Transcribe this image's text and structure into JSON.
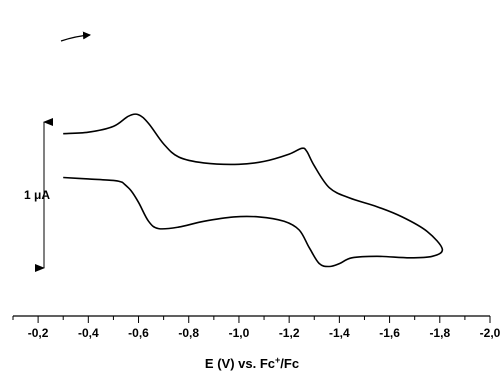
{
  "chart_data": {
    "type": "line",
    "xlabel_parts": {
      "pre": "E (V) vs. Fc",
      "sup": "+",
      "post": "/Fc"
    },
    "ylabel": "",
    "xlim": [
      -0.1,
      -2.0
    ],
    "x_ticks": [
      {
        "value": -0.2,
        "label": "-0,2"
      },
      {
        "value": -0.4,
        "label": "-0,4"
      },
      {
        "value": -0.6,
        "label": "-0,6"
      },
      {
        "value": -0.8,
        "label": "-0,8"
      },
      {
        "value": -1.0,
        "label": "-1,0"
      },
      {
        "value": -1.2,
        "label": "-1,2"
      },
      {
        "value": -1.4,
        "label": "-1,4"
      },
      {
        "value": -1.6,
        "label": "-1,6"
      },
      {
        "value": -1.8,
        "label": "-1,8"
      },
      {
        "value": -2.0,
        "label": "-2,0"
      }
    ],
    "grid": false,
    "current_units": "µA (relative to scale bar)",
    "scale_bar": {
      "label": "1 μA",
      "value_uA": 1.0,
      "span_uA": [
        0.0,
        1.0
      ]
    },
    "scan_direction": "toward more negative potential",
    "series": [
      {
        "points": [
          [
            -0.3,
            0.92
          ],
          [
            -0.4,
            0.93
          ],
          [
            -0.5,
            0.97
          ],
          [
            -0.56,
            1.04
          ],
          [
            -0.6,
            1.05
          ],
          [
            -0.64,
            0.99
          ],
          [
            -0.7,
            0.85
          ],
          [
            -0.76,
            0.76
          ],
          [
            -0.86,
            0.72
          ],
          [
            -1.0,
            0.71
          ],
          [
            -1.1,
            0.73
          ],
          [
            -1.2,
            0.78
          ],
          [
            -1.25,
            0.82
          ],
          [
            -1.27,
            0.8
          ],
          [
            -1.3,
            0.7
          ],
          [
            -1.36,
            0.55
          ],
          [
            -1.44,
            0.48
          ],
          [
            -1.55,
            0.42
          ],
          [
            -1.65,
            0.35
          ],
          [
            -1.75,
            0.25
          ],
          [
            -1.81,
            0.13
          ],
          [
            -1.77,
            0.08
          ],
          [
            -1.68,
            0.07
          ],
          [
            -1.55,
            0.08
          ],
          [
            -1.45,
            0.07
          ],
          [
            -1.4,
            0.03
          ],
          [
            -1.36,
            0.01
          ],
          [
            -1.32,
            0.03
          ],
          [
            -1.28,
            0.14
          ],
          [
            -1.24,
            0.26
          ],
          [
            -1.18,
            0.32
          ],
          [
            -1.08,
            0.35
          ],
          [
            -0.98,
            0.35
          ],
          [
            -0.86,
            0.32
          ],
          [
            -0.76,
            0.28
          ],
          [
            -0.68,
            0.27
          ],
          [
            -0.64,
            0.32
          ],
          [
            -0.6,
            0.45
          ],
          [
            -0.57,
            0.53
          ],
          [
            -0.54,
            0.58
          ],
          [
            -0.53,
            0.59
          ],
          [
            -0.5,
            0.6
          ],
          [
            -0.4,
            0.61
          ],
          [
            -0.3,
            0.62
          ]
        ]
      }
    ]
  }
}
